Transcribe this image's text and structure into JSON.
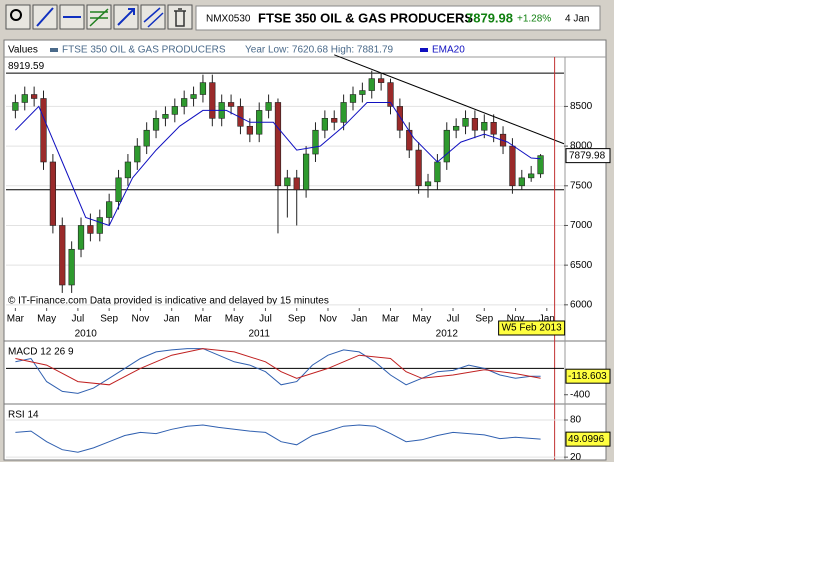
{
  "header": {
    "symbol": "NMX0530",
    "name": "FTSE 350 OIL & GAS PRODUCERS",
    "price": "7879.98",
    "change": "+1.28%",
    "date": "4 Jan"
  },
  "legend": {
    "values": "Values",
    "range": "Year Low: 7620.68 High: 7881.79"
  },
  "footer": "© IT-Finance.com Data provided is indicative and delayed by 15 minutes",
  "chart_data": [
    {
      "type": "candlestick",
      "series": [
        {
          "name": "FTSE 350 OIL & GAS PRODUCERS",
          "color": "#4a6a8a",
          "up_color": "#2e9a2e",
          "down_color": "#9a2a2a",
          "x": [
            0,
            0.6,
            1.2,
            1.8,
            2.4,
            3,
            3.6,
            4.2,
            4.8,
            5.4,
            6,
            6.6,
            7.2,
            7.8,
            8.4,
            9,
            9.6,
            10.2,
            10.8,
            11.4,
            12,
            12.6,
            13.2,
            13.8,
            14.4,
            15,
            15.6,
            16.2,
            16.8,
            17.4,
            18,
            18.6,
            19.2,
            19.8,
            20.4,
            21,
            21.6,
            22.2,
            22.8,
            23.4,
            24,
            24.6,
            25.2,
            25.8,
            26.4,
            27,
            27.6,
            28.2,
            28.8,
            29.4,
            30,
            30.6,
            31.2,
            31.8,
            32.4,
            33,
            33.6
          ],
          "open": [
            8450,
            8550,
            8650,
            8600,
            7800,
            7000,
            6250,
            6700,
            7000,
            6900,
            7100,
            7300,
            7600,
            7800,
            8000,
            8200,
            8350,
            8400,
            8500,
            8600,
            8650,
            8800,
            8350,
            8550,
            8500,
            8250,
            8150,
            8450,
            8550,
            7500,
            7600,
            7450,
            7900,
            8200,
            8350,
            8300,
            8550,
            8650,
            8700,
            8850,
            8800,
            8500,
            8200,
            7950,
            7500,
            7550,
            7800,
            8200,
            8250,
            8350,
            8200,
            8300,
            8150,
            8000,
            7500,
            7600,
            7650
          ],
          "high": [
            8650,
            8750,
            8750,
            8700,
            7900,
            7100,
            6800,
            7100,
            7150,
            7200,
            7400,
            7700,
            7900,
            8100,
            8300,
            8450,
            8500,
            8600,
            8700,
            8750,
            8900,
            8900,
            8650,
            8650,
            8600,
            8350,
            8550,
            8650,
            8600,
            7700,
            7700,
            8000,
            8300,
            8450,
            8450,
            8650,
            8750,
            8800,
            8950,
            8920,
            8850,
            8600,
            8300,
            8050,
            7650,
            7900,
            8300,
            8350,
            8450,
            8450,
            8400,
            8400,
            8250,
            8100,
            7700,
            7750,
            7900
          ],
          "low": [
            8350,
            8450,
            8500,
            7700,
            6900,
            6150,
            6150,
            6600,
            6800,
            6800,
            7000,
            7200,
            7500,
            7700,
            7900,
            8100,
            8250,
            8300,
            8400,
            8500,
            8550,
            8250,
            8250,
            8400,
            8150,
            8050,
            8050,
            8350,
            6900,
            7100,
            7000,
            7350,
            7800,
            8100,
            8200,
            8200,
            8450,
            8550,
            8600,
            8700,
            8400,
            8100,
            7850,
            7400,
            7350,
            7450,
            7700,
            8100,
            8150,
            8100,
            8100,
            8050,
            7900,
            7400,
            7450,
            7550,
            7600
          ],
          "close": [
            8550,
            8650,
            8600,
            7800,
            7000,
            6250,
            6700,
            7000,
            6900,
            7100,
            7300,
            7600,
            7800,
            8000,
            8200,
            8350,
            8400,
            8500,
            8600,
            8650,
            8800,
            8350,
            8550,
            8500,
            8250,
            8150,
            8450,
            8550,
            7500,
            7600,
            7450,
            7900,
            8200,
            8350,
            8300,
            8550,
            8650,
            8700,
            8850,
            8800,
            8500,
            8200,
            7950,
            7500,
            7550,
            7800,
            8200,
            8250,
            8350,
            8200,
            8300,
            8150,
            8000,
            7500,
            7600,
            7650,
            7879.98
          ]
        },
        {
          "name": "EMA20",
          "type": "line",
          "color": "#1010c0",
          "x": [
            0,
            1.5,
            3,
            4.5,
            6,
            7.5,
            9,
            10.5,
            12,
            13.5,
            15,
            16.5,
            18,
            19.5,
            21,
            22.5,
            24,
            25.5,
            27,
            28.5,
            30,
            31.5,
            33,
            33.6
          ],
          "values": [
            8200,
            8500,
            7800,
            7100,
            7000,
            7600,
            7950,
            8250,
            8450,
            8450,
            8300,
            8300,
            7950,
            8000,
            8250,
            8550,
            8550,
            8100,
            7800,
            8050,
            8150,
            8050,
            7850,
            7840
          ]
        }
      ],
      "xlim": [
        -0.6,
        35.1
      ],
      "ylim": [
        5960,
        9085
      ],
      "yticks": [
        6000,
        6500,
        7000,
        7500,
        8000,
        8500
      ],
      "grid": true,
      "hlines": [
        8919.59,
        7450
      ],
      "trendline": {
        "x": [
          20.4,
          35.1
        ],
        "y": [
          9150,
          8030
        ]
      },
      "xticks": [
        {
          "value": 0,
          "label": "Mar"
        },
        {
          "value": 2,
          "label": "May"
        },
        {
          "value": 4,
          "label": "Jul"
        },
        {
          "value": 6,
          "label": "Sep"
        },
        {
          "value": 8,
          "label": "Nov"
        },
        {
          "value": 10,
          "label": "Jan"
        },
        {
          "value": 12,
          "label": "Mar"
        },
        {
          "value": 14,
          "label": "May"
        },
        {
          "value": 16,
          "label": "Jul"
        },
        {
          "value": 18,
          "label": "Sep"
        },
        {
          "value": 20,
          "label": "Nov"
        },
        {
          "value": 22,
          "label": "Jan"
        },
        {
          "value": 24,
          "label": "Mar"
        },
        {
          "value": 26,
          "label": "May"
        },
        {
          "value": 28,
          "label": "Jul"
        },
        {
          "value": 30,
          "label": "Sep"
        },
        {
          "value": 32,
          "label": "Nov"
        },
        {
          "value": 34,
          "label": "Jan"
        }
      ],
      "year_labels": [
        {
          "value": 4.5,
          "label": "2010"
        },
        {
          "value": 15.6,
          "label": "2011"
        },
        {
          "value": 27.6,
          "label": "2012"
        }
      ],
      "cursor": {
        "x": 34.5,
        "label": "W5 Feb 2013",
        "color": "#c03030"
      }
    },
    {
      "type": "line",
      "label": "MACD 12 26 9",
      "xlim": [
        -0.6,
        35.1
      ],
      "ylim": [
        -480,
        370
      ],
      "yticks": [
        -400
      ],
      "hlines": [
        0
      ],
      "series": [
        {
          "color": "#3060b0",
          "x": [
            0,
            1,
            2,
            3,
            4,
            5,
            6,
            7,
            8,
            9,
            10,
            11,
            12,
            13,
            14,
            15,
            16,
            17,
            18,
            19,
            20,
            21,
            22,
            23,
            24,
            25,
            26,
            27,
            28,
            29,
            30,
            31,
            32,
            33,
            33.6
          ],
          "values": [
            100,
            150,
            -200,
            -350,
            -380,
            -300,
            -150,
            0,
            150,
            250,
            280,
            300,
            300,
            200,
            100,
            50,
            -50,
            -250,
            -200,
            50,
            200,
            280,
            250,
            100,
            -100,
            -250,
            -150,
            -50,
            -30,
            50,
            0,
            -100,
            -150,
            -120,
            -118.603
          ]
        },
        {
          "color": "#c02020",
          "x": [
            0,
            2,
            4,
            6,
            8,
            10,
            12,
            14,
            16,
            17,
            18,
            20,
            22,
            24,
            25,
            26,
            28,
            30,
            32,
            33.6
          ],
          "values": [
            150,
            50,
            -200,
            -250,
            0,
            200,
            300,
            250,
            100,
            -50,
            -150,
            0,
            200,
            150,
            -50,
            -150,
            -100,
            -20,
            -80,
            -150
          ]
        }
      ]
    },
    {
      "type": "line",
      "label": "RSI 14",
      "xlim": [
        -0.6,
        35.1
      ],
      "ylim": [
        17,
        101
      ],
      "yticks": [
        80,
        20
      ],
      "grid": true,
      "series": [
        {
          "color": "#3060b0",
          "x": [
            0,
            1,
            2,
            3,
            4,
            5,
            6,
            7,
            8,
            9,
            10,
            11,
            12,
            13,
            14,
            15,
            16,
            17,
            18,
            19,
            20,
            21,
            22,
            23,
            24,
            25,
            26,
            27,
            28,
            29,
            30,
            31,
            32,
            33.6
          ],
          "values": [
            60,
            62,
            45,
            32,
            28,
            35,
            45,
            55,
            60,
            58,
            65,
            70,
            72,
            68,
            65,
            62,
            60,
            45,
            40,
            55,
            62,
            70,
            72,
            70,
            58,
            45,
            48,
            55,
            60,
            58,
            56,
            50,
            52,
            49.0996
          ]
        }
      ]
    }
  ]
}
